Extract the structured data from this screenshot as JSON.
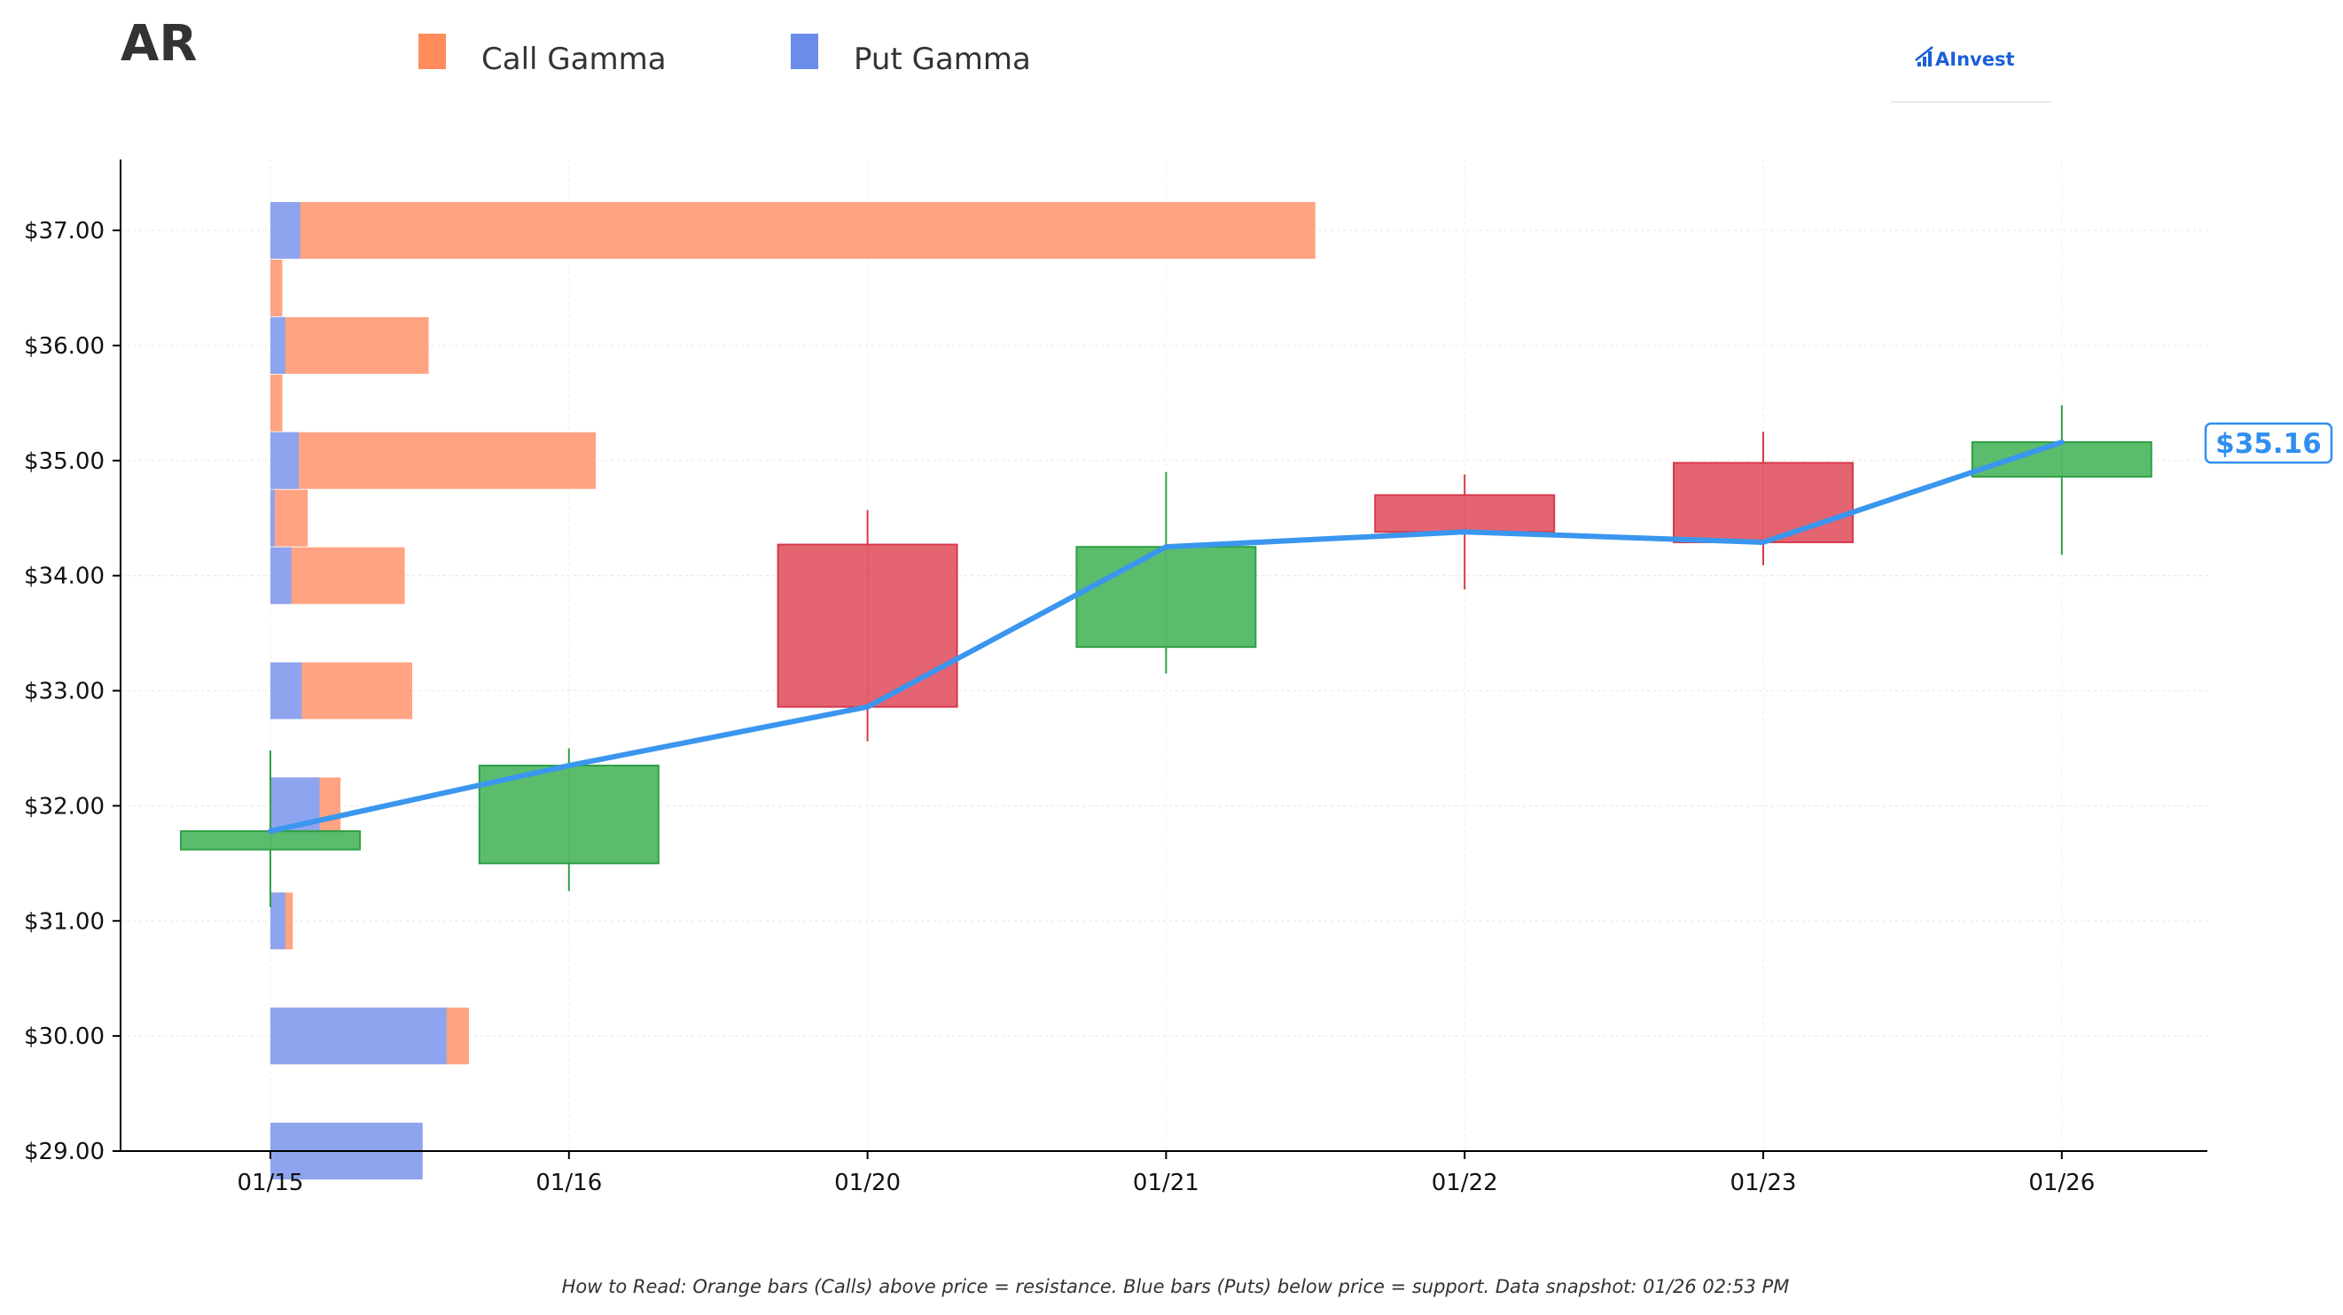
{
  "title": "AR",
  "legend": [
    {
      "label": "Call Gamma",
      "color": "#ff8c5a"
    },
    {
      "label": "Put Gamma",
      "color": "#6b8cea"
    }
  ],
  "logo": {
    "text": "AInvest",
    "icon": "bar-chart-arrow-icon"
  },
  "footer": "How to Read: Orange bars (Calls) above price = resistance. Blue bars (Puts) below price = support. Data snapshot: 01/26 02:53 PM",
  "current_price_label": "$35.16",
  "colors": {
    "call": "#ffa383",
    "put": "#8ea4ee",
    "up": "#52b866",
    "up_edge": "#2ea043",
    "down": "#e35c6a",
    "down_edge": "#d63a4a",
    "line": "#3a96ee"
  },
  "chart_data": {
    "type": "candlestick",
    "ylim": [
      29.0,
      37.6
    ],
    "y_ticks": [
      29,
      30,
      31,
      32,
      33,
      34,
      35,
      36,
      37
    ],
    "y_tick_labels": [
      "$29.00",
      "$30.00",
      "$31.00",
      "$32.00",
      "$33.00",
      "$34.00",
      "$35.00",
      "$36.00",
      "$37.00"
    ],
    "categories": [
      "01/15",
      "01/16",
      "01/20",
      "01/21",
      "01/22",
      "01/23",
      "01/26"
    ],
    "ohlc": [
      {
        "date": "01/15",
        "open": 31.62,
        "high": 32.48,
        "low": 31.12,
        "close": 31.78
      },
      {
        "date": "01/16",
        "open": 31.5,
        "high": 32.5,
        "low": 31.26,
        "close": 32.35
      },
      {
        "date": "01/20",
        "open": 34.27,
        "high": 34.57,
        "low": 32.56,
        "close": 32.86
      },
      {
        "date": "01/21",
        "open": 33.38,
        "high": 34.9,
        "low": 33.15,
        "close": 34.25
      },
      {
        "date": "01/22",
        "open": 34.7,
        "high": 34.88,
        "low": 33.88,
        "close": 34.38
      },
      {
        "date": "01/23",
        "open": 34.98,
        "high": 35.25,
        "low": 34.09,
        "close": 34.29
      },
      {
        "date": "01/26",
        "open": 34.86,
        "high": 35.48,
        "low": 34.18,
        "close": 35.16
      }
    ],
    "close_line": [
      31.78,
      32.35,
      32.86,
      34.25,
      34.38,
      34.29,
      35.16
    ],
    "gamma_x_unit": "days from 01/15",
    "gamma_bars": [
      {
        "strike": 37.0,
        "call": 3.5,
        "put": 0.1
      },
      {
        "strike": 36.5,
        "call": 0.04,
        "put": 0
      },
      {
        "strike": 36.0,
        "call": 0.53,
        "put": 0.05
      },
      {
        "strike": 35.5,
        "call": 0.04,
        "put": 0
      },
      {
        "strike": 35.0,
        "call": 1.09,
        "put": 0.095
      },
      {
        "strike": 34.5,
        "call": 0.125,
        "put": 0.015
      },
      {
        "strike": 34.0,
        "call": 0.45,
        "put": 0.07
      },
      {
        "strike": 33.0,
        "call": 0.475,
        "put": 0.105
      },
      {
        "strike": 32.0,
        "call": 0.235,
        "put": 0.165
      },
      {
        "strike": 31.0,
        "call": 0.075,
        "put": 0.05
      },
      {
        "strike": 30.0,
        "call": 0.665,
        "put": 0.59
      },
      {
        "strike": 29.0,
        "call": 0,
        "put": 0.51
      }
    ]
  }
}
